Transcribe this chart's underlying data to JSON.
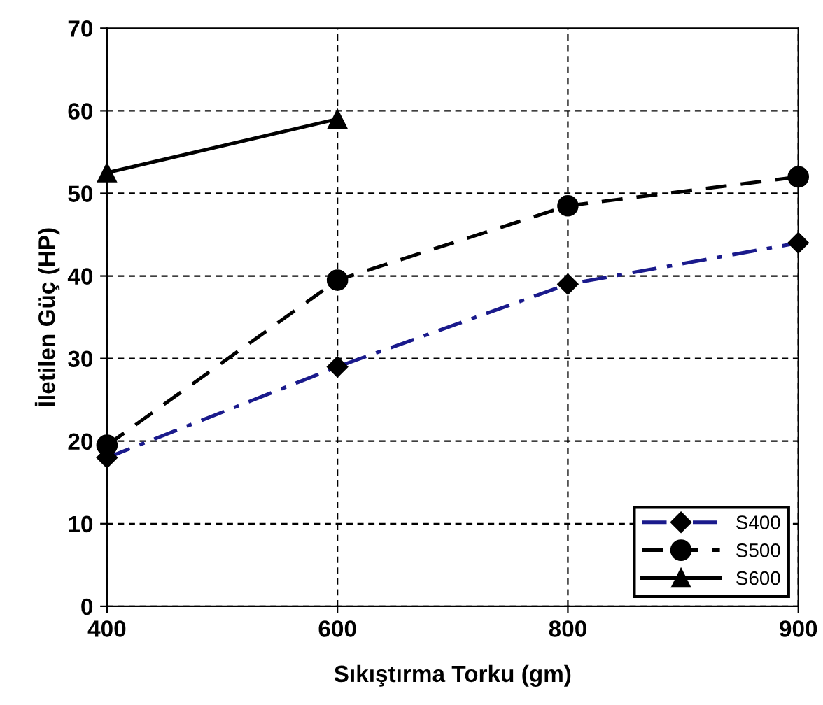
{
  "chart_data": {
    "type": "line",
    "xlabel": "Sıkıştırma Torku (gm)",
    "ylabel": "İletilen Güç (HP)",
    "categories": [
      "400",
      "600",
      "800",
      "900"
    ],
    "series": [
      {
        "name": "S400",
        "color": "#1a1a8c",
        "values": [
          18,
          29,
          39,
          44
        ],
        "marker": "diamond",
        "line_style": "dashdot"
      },
      {
        "name": "S500",
        "color": "#000000",
        "values": [
          19.5,
          39.5,
          48.5,
          52
        ],
        "marker": "circle",
        "line_style": "dashed"
      },
      {
        "name": "S600",
        "color": "#000000",
        "values": [
          52.5,
          59,
          null,
          null
        ],
        "marker": "triangle",
        "line_style": "solid"
      }
    ],
    "ylim": [
      0,
      70
    ],
    "yticks": [
      0,
      10,
      20,
      30,
      40,
      50,
      60,
      70
    ],
    "grid": true,
    "legend": "bottom right"
  }
}
